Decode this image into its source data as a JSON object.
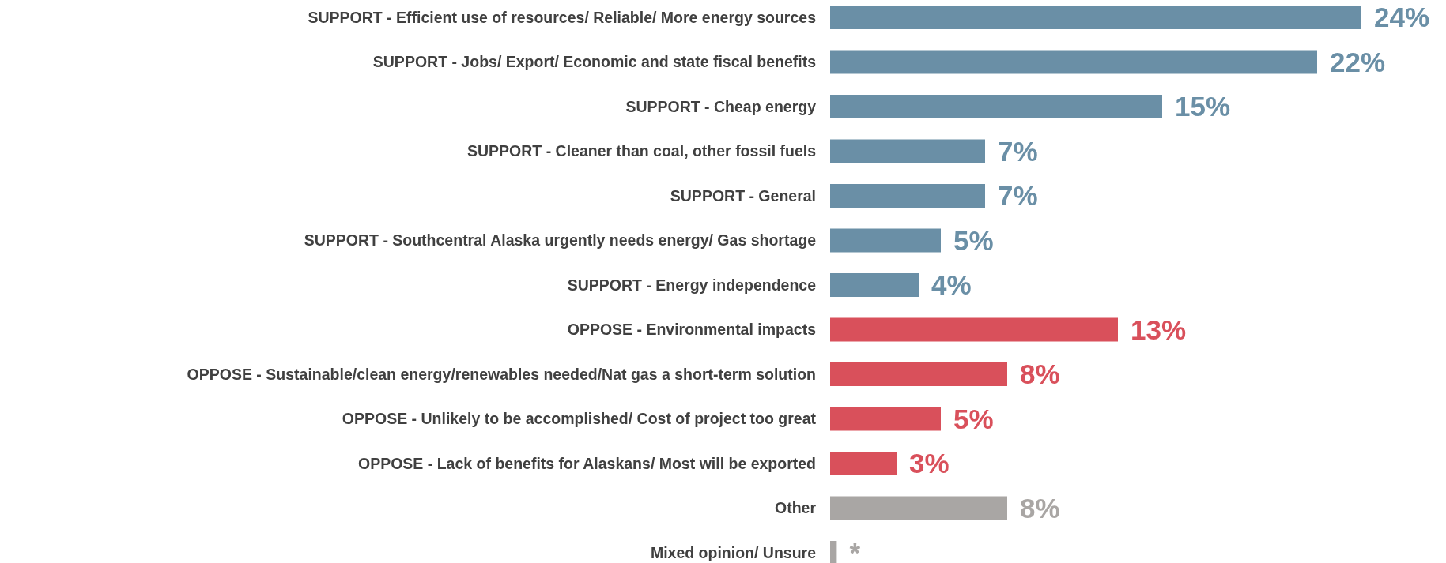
{
  "chart_data": {
    "type": "bar",
    "orientation": "horizontal",
    "categories": [
      "SUPPORT - Efficient use of resources/ Reliable/ More energy sources",
      "SUPPORT - Jobs/ Export/ Economic and state fiscal benefits",
      "SUPPORT - Cheap energy",
      "SUPPORT - Cleaner than coal, other fossil fuels",
      "SUPPORT - General",
      "SUPPORT - Southcentral Alaska urgently needs energy/ Gas shortage",
      "SUPPORT - Energy independence",
      "OPPOSE - Environmental impacts",
      "OPPOSE - Sustainable/clean energy/renewables needed/Nat gas a short-term solution",
      "OPPOSE - Unlikely to be accomplished/ Cost of project too great",
      "OPPOSE - Lack of benefits for Alaskans/ Most will be exported",
      "Other",
      "Mixed opinion/ Unsure"
    ],
    "values": [
      24,
      22,
      15,
      7,
      7,
      5,
      4,
      13,
      8,
      5,
      3,
      8,
      0.3
    ],
    "colors": [
      "#6a8fa6",
      "#6a8fa6",
      "#6a8fa6",
      "#6a8fa6",
      "#6a8fa6",
      "#6a8fa6",
      "#6a8fa6",
      "#d9505b",
      "#d9505b",
      "#d9505b",
      "#d9505b",
      "#a9a6a4",
      "#a9a6a4"
    ],
    "value_labels": [
      "24%",
      "22%",
      "15%",
      "7%",
      "7%",
      "5%",
      "4%",
      "13%",
      "8%",
      "5%",
      "3%",
      "8%",
      "*"
    ]
  }
}
